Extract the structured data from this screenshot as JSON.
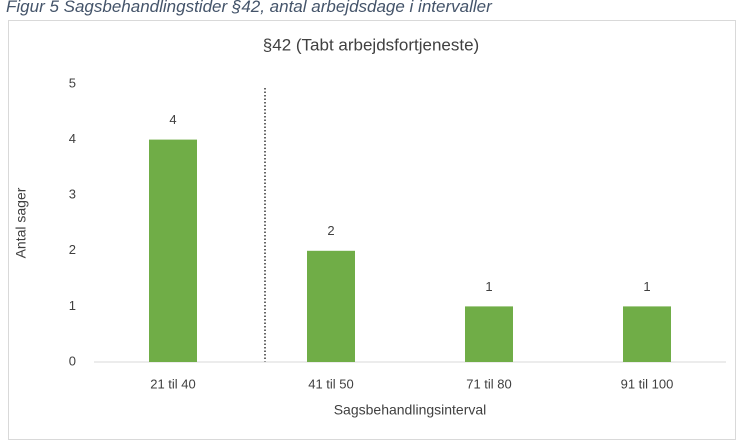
{
  "caption": "Figur 5 Sagsbehandlingstider §42, antal arbejdsdage i intervaller",
  "chart_data": {
    "type": "bar",
    "title": "§42 (Tabt arbejdsfortjeneste)",
    "x_label": "Sagsbehandlingsinterval",
    "y_label": "Antal sager",
    "categories": [
      "21 til 40",
      "41 til 50",
      "71 til 80",
      "91 til 100"
    ],
    "values": [
      4,
      2,
      1,
      1
    ],
    "color": "#70ad47",
    "ylim": [
      0,
      5
    ],
    "yticks": [
      0,
      1,
      2,
      3,
      4,
      5
    ],
    "grid": false
  }
}
